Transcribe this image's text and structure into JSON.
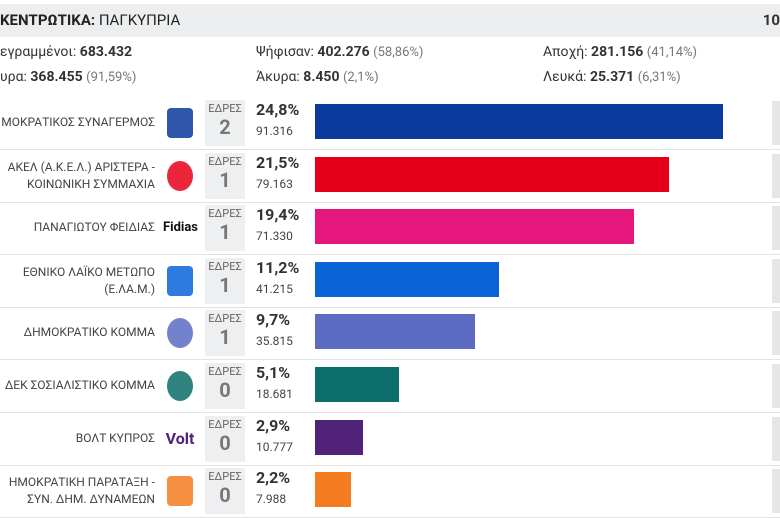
{
  "header": {
    "title": "ΚΕΝΤΡΩΤΙΚΑ:",
    "subtitle": "ΠΑΓΚΥΠΡΙΑ",
    "right": "10"
  },
  "stats": [
    [
      {
        "label": "εγραμμένοι:",
        "value": "683.432",
        "pct": ""
      },
      {
        "label": "Ψήφισαν:",
        "value": "402.276",
        "pct": "(58,86%)"
      },
      {
        "label": "Αποχή:",
        "value": "281.156",
        "pct": "(41,14%)"
      }
    ],
    [
      {
        "label": "υρα:",
        "value": "368.455",
        "pct": "(91,59%)"
      },
      {
        "label": "Άκυρα:",
        "value": "8.450",
        "pct": "(2,1%)"
      },
      {
        "label": "Λευκά:",
        "value": "25.371",
        "pct": "(6,31%)"
      }
    ]
  ],
  "seats_label": "ΕΔΡΕΣ",
  "parties": [
    {
      "name": [
        "ΜΟΚΡΑΤΙΚΟΣ ΣΥΝΑΓΕΡΜΟΣ"
      ],
      "seats": 2,
      "pct": {
        "value": 24.8,
        "label": "24,8%"
      },
      "votes": "91.316",
      "color": "#0a3a9e"
    },
    {
      "name": [
        "ΑΚΕΛ (Α.Κ.Ε.Λ.) ΑΡΙΣΤΕΡΑ -",
        "ΚΟΙΝΩΝΙΚΗ ΣΥΜΜΑΧΙΑ"
      ],
      "seats": 1,
      "pct": {
        "value": 21.5,
        "label": "21,5%"
      },
      "votes": "79.163",
      "color": "#e5001a"
    },
    {
      "name": [
        "ΠΑΝΑΓΙΩΤΟΥ ΦΕΙΔΙΑΣ"
      ],
      "logo": "Fidias",
      "seats": 1,
      "pct": {
        "value": 19.4,
        "label": "19,4%"
      },
      "votes": "71.330",
      "color": "#e5167c"
    },
    {
      "name": [
        "ΕΘΝΙΚΟ ΛΑΪΚΟ ΜΕΤΩΠΟ",
        "(Ε.ΛΑ.Μ.)"
      ],
      "seats": 1,
      "pct": {
        "value": 11.2,
        "label": "11,2%"
      },
      "votes": "41.215",
      "color": "#0b63d8"
    },
    {
      "name": [
        "ΔΗΜΟΚΡΑΤΙΚΟ ΚΟΜΜΑ"
      ],
      "seats": 1,
      "pct": {
        "value": 9.7,
        "label": "9,7%"
      },
      "votes": "35.815",
      "color": "#5c6cc2"
    },
    {
      "name": [
        "ΔΕΚ ΣΟΣΙΑΛΙΣΤΙΚΟ ΚΟΜΜΑ"
      ],
      "seats": 0,
      "pct": {
        "value": 5.1,
        "label": "5,1%"
      },
      "votes": "18.681",
      "color": "#0b6e6a"
    },
    {
      "name": [
        "ΒΟΛΤ ΚΥΠΡΟΣ"
      ],
      "logo": "Volt",
      "seats": 0,
      "pct": {
        "value": 2.9,
        "label": "2,9%"
      },
      "votes": "10.777",
      "color": "#502379"
    },
    {
      "name": [
        "ΗΜΟΚΡΑΤΙΚΗ ΠΑΡΑΤΑΞΗ -",
        "ΣΥΝ. ΔΗΜ. ΔΥΝΑΜΕΩΝ"
      ],
      "seats": 0,
      "pct": {
        "value": 2.2,
        "label": "2,2%"
      },
      "votes": "7.988",
      "color": "#f47b20"
    }
  ]
}
